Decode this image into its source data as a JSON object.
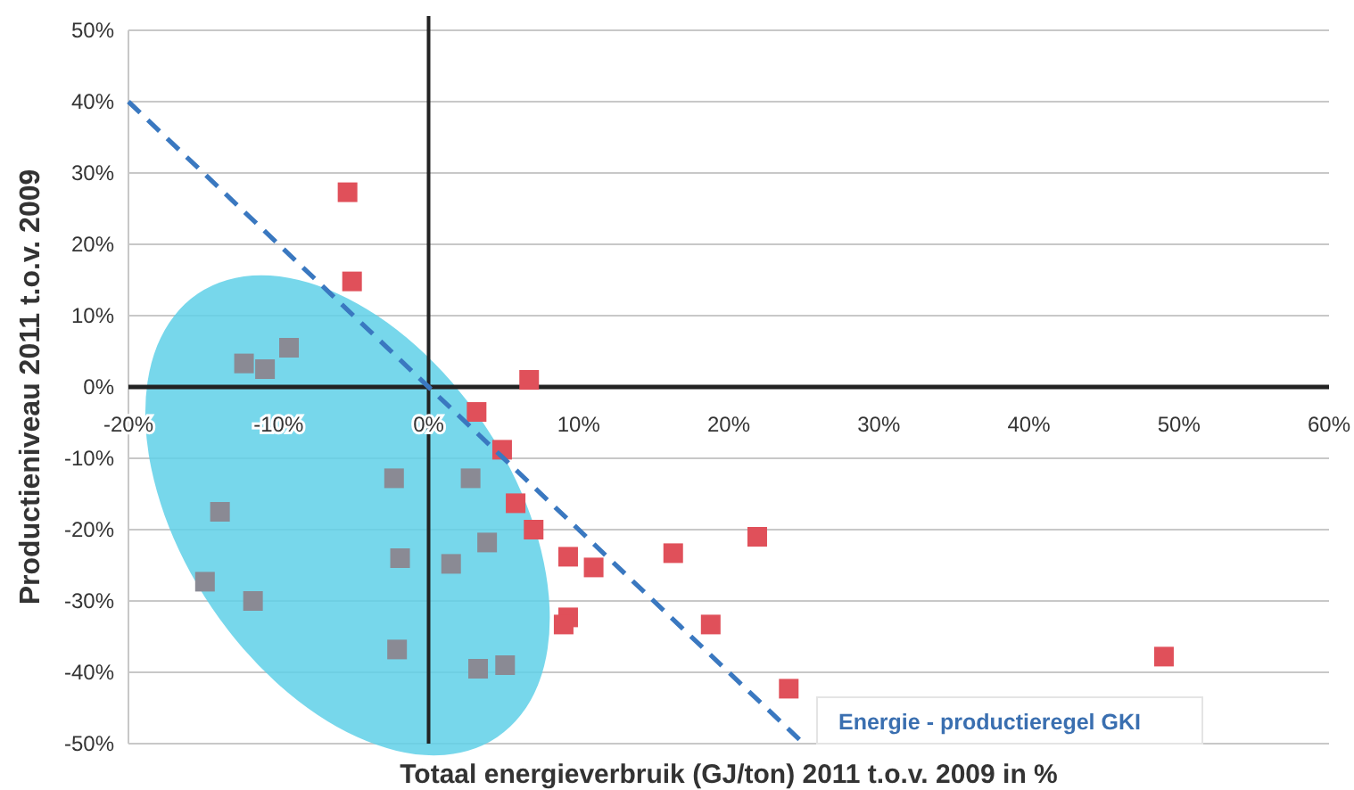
{
  "chart_data": {
    "type": "scatter",
    "xlabel": "Totaal energieverbruik  (GJ/ton) 2011 t.o.v. 2009 in %",
    "ylabel": "Productieniveau 2011 t.o.v. 2009",
    "xlim": [
      -20,
      60
    ],
    "ylim": [
      -50,
      50
    ],
    "xticks": [
      {
        "value": -20,
        "label": "-20%"
      },
      {
        "value": -10,
        "label": "-10%"
      },
      {
        "value": 0,
        "label": "0%"
      },
      {
        "value": 10,
        "label": "10%"
      },
      {
        "value": 20,
        "label": "20%"
      },
      {
        "value": 30,
        "label": "30%"
      },
      {
        "value": 40,
        "label": "40%"
      },
      {
        "value": 50,
        "label": "50%"
      },
      {
        "value": 60,
        "label": "60%"
      }
    ],
    "yticks": [
      {
        "value": -50,
        "label": "-50%"
      },
      {
        "value": -40,
        "label": "-40%"
      },
      {
        "value": -30,
        "label": "-30%"
      },
      {
        "value": -20,
        "label": "-20%"
      },
      {
        "value": -10,
        "label": "-10%"
      },
      {
        "value": 0,
        "label": "0%"
      },
      {
        "value": 10,
        "label": "10%"
      },
      {
        "value": 20,
        "label": "20%"
      },
      {
        "value": 30,
        "label": "30%"
      },
      {
        "value": 40,
        "label": "40%"
      },
      {
        "value": 50,
        "label": "50%"
      }
    ],
    "grid": "y",
    "marker": "square",
    "series": [
      {
        "color": "#8a8a94",
        "x": [
          -12.3,
          -10.9,
          -9.3,
          -2.3,
          2.8,
          -13.9,
          -14.9,
          -11.7,
          -1.9,
          1.5,
          3.9,
          -2.1,
          3.3,
          5.1
        ],
        "values": [
          3.3,
          2.5,
          5.5,
          -12.8,
          -12.8,
          -17.5,
          -27.3,
          -30,
          -24,
          -24.8,
          -21.8,
          -36.8,
          -39.5,
          -39
        ]
      },
      {
        "color": "#e0505a",
        "x": [
          -5.4,
          -5.1,
          6.7,
          3.2,
          4.9,
          5.8,
          7,
          9.3,
          11,
          16.3,
          21.9,
          9.3,
          9,
          18.8,
          24,
          49
        ],
        "values": [
          27.3,
          14.8,
          1,
          -3.5,
          -8.8,
          -16.3,
          -20,
          -23.8,
          -25.3,
          -23.3,
          -21,
          -32.3,
          -33.3,
          -33.3,
          -42.3,
          -37.8
        ]
      },
      {
        "type": "line",
        "color": "#3a78c0",
        "line_style": "dashed",
        "marker": "none",
        "x": [
          -20,
          25
        ],
        "values": [
          40,
          -50
        ]
      }
    ],
    "annotations": [
      "Energie - productieregel GKI"
    ]
  }
}
